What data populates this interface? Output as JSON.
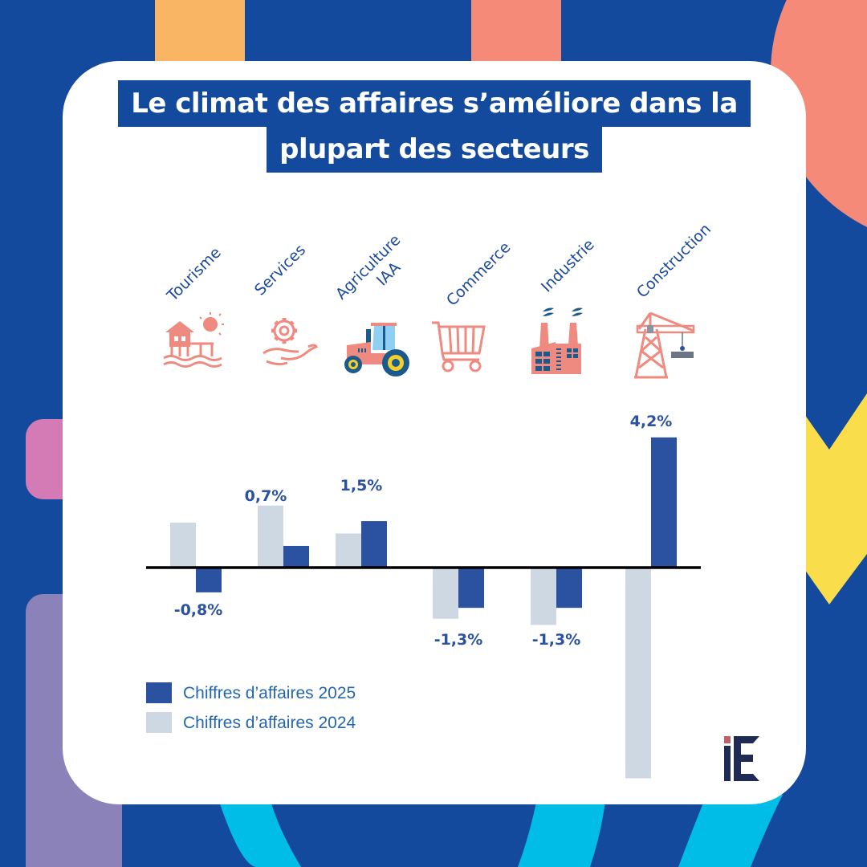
{
  "title": {
    "line1": "Le climat des affaires s’améliore dans la",
    "line2": "plupart des secteurs"
  },
  "colors": {
    "background": "#134a9d",
    "card": "#ffffff",
    "bar_2025": "#2a52a0",
    "bar_2024": "#cdd8e2",
    "icon_primary": "#ef8a80",
    "icon_secondary": "#1b5a8c",
    "accent_orange": "#f9b563",
    "accent_salmon": "#f58a78",
    "accent_pink": "#d47ab5",
    "accent_purple": "#8b82ba",
    "accent_yellow": "#f9dd4a",
    "accent_cyan": "#00bde8",
    "logo_dark": "#1f2b55",
    "logo_dot": "#c0606a"
  },
  "chart_data": {
    "type": "bar",
    "title": "Le climat des affaires s’améliore dans la plupart des secteurs",
    "xlabel": "",
    "ylabel": "",
    "categories": [
      "Tourisme",
      "Services",
      "Agriculture IAA",
      "Commerce",
      "Industrie",
      "Construction"
    ],
    "category_lines": [
      [
        "Tourisme"
      ],
      [
        "Services"
      ],
      [
        "Agriculture",
        "IAA"
      ],
      [
        "Commerce"
      ],
      [
        "Industrie"
      ],
      [
        "Construction"
      ]
    ],
    "category_icons": [
      "beach-house-icon",
      "gear-hand-icon",
      "tractor-icon",
      "shopping-cart-icon",
      "factory-icon",
      "crane-icon"
    ],
    "series": [
      {
        "name": "Chiffres d’affaires 2024",
        "values": [
          1.45,
          2.0,
          1.1,
          -1.65,
          -1.85,
          -6.8
        ]
      },
      {
        "name": "Chiffres d’affaires 2025",
        "values": [
          -0.8,
          0.7,
          1.5,
          -1.3,
          -1.3,
          4.2
        ]
      }
    ],
    "data_labels_2025": [
      "-0,8%",
      "0,7%",
      "1,5%",
      "-1,3%",
      "-1,3%",
      "4,2%"
    ],
    "ylim": [
      -7,
      4.5
    ],
    "grid": false,
    "zero_line": true,
    "legend": {
      "position": "bottom-left",
      "entries": [
        "Chiffres d’affaires 2025",
        "Chiffres d’affaires 2024"
      ]
    }
  },
  "logo": {
    "text": "iE"
  }
}
